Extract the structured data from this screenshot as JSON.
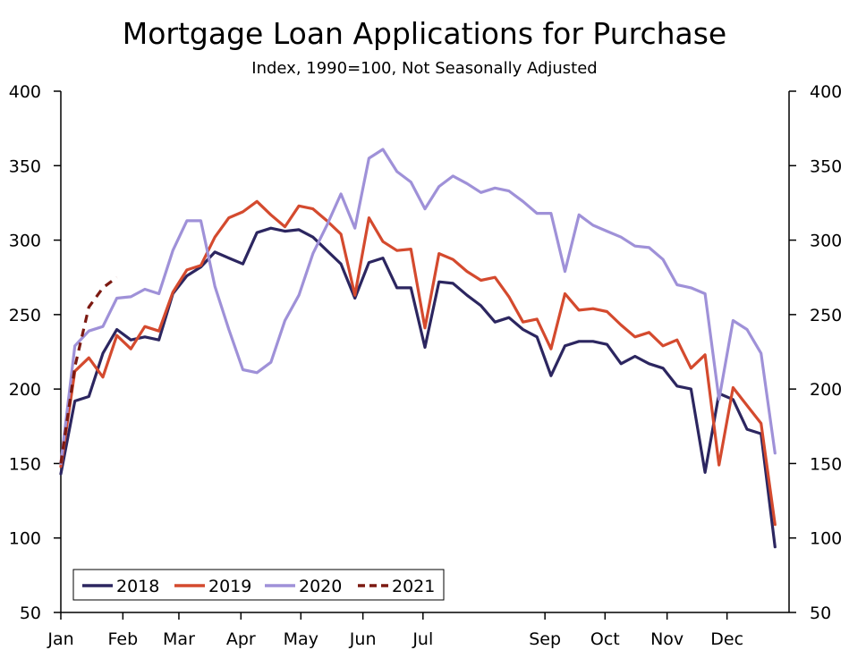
{
  "chart_data": {
    "type": "line",
    "title": "Mortgage Loan Applications for Purchase",
    "subtitle": "Index, 1990=100, Not Seasonally Adjusted",
    "xlabel": "",
    "ylabel": "",
    "x_ticks": [
      "Jan",
      "Feb",
      "Mar",
      "Apr",
      "May",
      "Jun",
      "Jul",
      "Sep",
      "Oct",
      "Nov",
      "Dec"
    ],
    "y_ticks": [
      "50",
      "100",
      "150",
      "200",
      "250",
      "300",
      "350",
      "400"
    ],
    "ylim": [
      50,
      400
    ],
    "x_unit": "week of year",
    "xlim": [
      1,
      53
    ],
    "grid": false,
    "legend_position": "bottom-left",
    "series": [
      {
        "name": "2018",
        "color": "#2c2660",
        "dash": "solid",
        "values": [
          143,
          192,
          195,
          224,
          240,
          233,
          235,
          233,
          264,
          276,
          282,
          292,
          288,
          284,
          305,
          308,
          306,
          307,
          302,
          293,
          284,
          261,
          285,
          288,
          268,
          268,
          228,
          272,
          271,
          263,
          256,
          245,
          248,
          240,
          235,
          209,
          229,
          232,
          232,
          230,
          217,
          222,
          217,
          214,
          202,
          200,
          144,
          197,
          193,
          173,
          170,
          94
        ]
      },
      {
        "name": "2019",
        "color": "#d44a2e",
        "dash": "solid",
        "values": [
          148,
          212,
          221,
          208,
          236,
          227,
          242,
          239,
          265,
          280,
          283,
          302,
          315,
          319,
          326,
          317,
          309,
          323,
          321,
          313,
          304,
          263,
          315,
          299,
          293,
          294,
          241,
          291,
          287,
          279,
          273,
          275,
          262,
          245,
          247,
          227,
          264,
          253,
          254,
          252,
          243,
          235,
          238,
          229,
          233,
          214,
          223,
          149,
          201,
          189,
          177,
          109
        ]
      },
      {
        "name": "2020",
        "color": "#9f91d8",
        "dash": "solid",
        "values": [
          150,
          229,
          239,
          242,
          261,
          262,
          267,
          264,
          293,
          313,
          313,
          269,
          240,
          213,
          211,
          218,
          246,
          263,
          291,
          310,
          331,
          308,
          355,
          361,
          346,
          339,
          321,
          336,
          343,
          338,
          332,
          335,
          333,
          326,
          318,
          318,
          279,
          317,
          310,
          306,
          302,
          296,
          295,
          287,
          270,
          268,
          264,
          193,
          246,
          240,
          224,
          157
        ]
      },
      {
        "name": "2021",
        "color": "#7c1a12",
        "dash": "dashed",
        "values": [
          150,
          215,
          255,
          268,
          275
        ]
      }
    ]
  }
}
